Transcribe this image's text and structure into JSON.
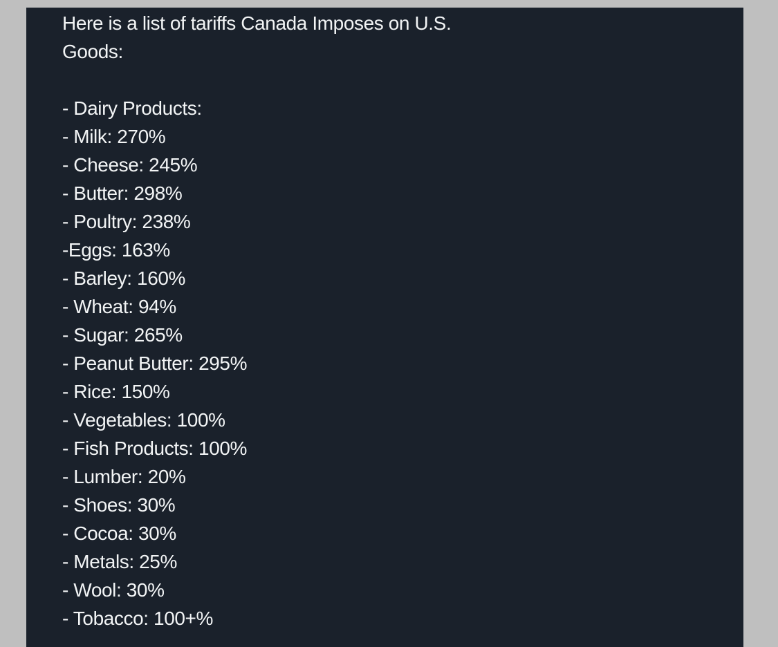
{
  "post": {
    "intro_line1": "Here is a list of tariffs Canada Imposes on U.S.",
    "intro_line2": "Goods:",
    "items": [
      "- Dairy Products:",
      "- Milk: 270%",
      "- Cheese: 245%",
      "- Butter: 298%",
      "- Poultry: 238%",
      "-Eggs: 163%",
      "- Barley: 160%",
      "- Wheat: 94%",
      "- Sugar: 265%",
      "- Peanut Butter: 295%",
      "- Rice: 150%",
      "- Vegetables: 100%",
      "- Fish Products: 100%",
      "- Lumber: 20%",
      "- Shoes: 30%",
      "- Cocoa: 30%",
      "- Metals: 25%",
      "- Wool: 30%",
      "- Tobacco: 100+%"
    ]
  },
  "colors": {
    "background": "#1a212b",
    "text": "#f2f4f5",
    "outer": "#bfbfbf"
  }
}
